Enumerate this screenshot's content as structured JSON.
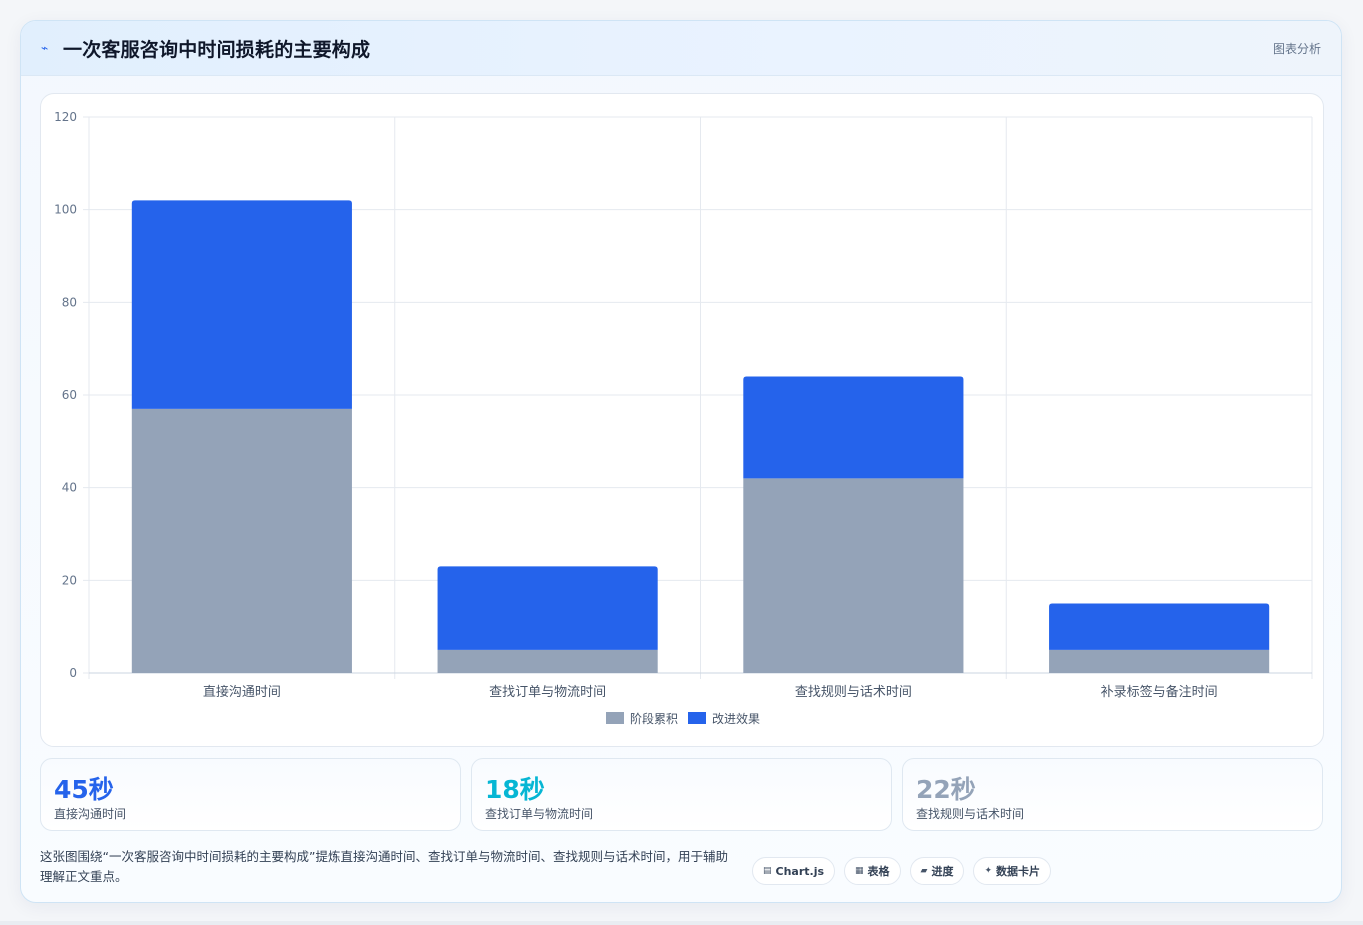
{
  "header": {
    "icon": "bolt-icon",
    "title": "一次客服咨询中时间损耗的主要构成",
    "tag": "图表分析"
  },
  "chart_data": {
    "type": "bar",
    "stacked": true,
    "categories": [
      "直接沟通时间",
      "查找订单与物流时间",
      "查找规则与话术时间",
      "补录标签与备注时间"
    ],
    "series": [
      {
        "name": "阶段累积",
        "color": "#94a3b8",
        "values": [
          57,
          5,
          42,
          5
        ]
      },
      {
        "name": "改进效果",
        "color": "#2563eb",
        "values": [
          45,
          18,
          22,
          10
        ]
      }
    ],
    "ylim": [
      0,
      120
    ],
    "yticks": [
      0,
      20,
      40,
      60,
      80,
      100,
      120
    ],
    "grid": true,
    "legend": "bottom"
  },
  "stats": [
    {
      "value": "45秒",
      "label": "直接沟通时间",
      "color": "#2563eb"
    },
    {
      "value": "18秒",
      "label": "查找订单与物流时间",
      "color": "#06b6d4"
    },
    {
      "value": "22秒",
      "label": "查找规则与话术时间",
      "color": "#94a3b8"
    }
  ],
  "footer": {
    "text": "这张图围绕“一次客服咨询中时间损耗的主要构成”提炼直接沟通时间、查找订单与物流时间、查找规则与话术时间，用于辅助理解正文重点。"
  },
  "chips": [
    {
      "icon": "▤",
      "label": "Chart.js"
    },
    {
      "icon": "▦",
      "label": "表格"
    },
    {
      "icon": "▰",
      "label": "进度"
    },
    {
      "icon": "✦",
      "label": "数据卡片"
    }
  ]
}
